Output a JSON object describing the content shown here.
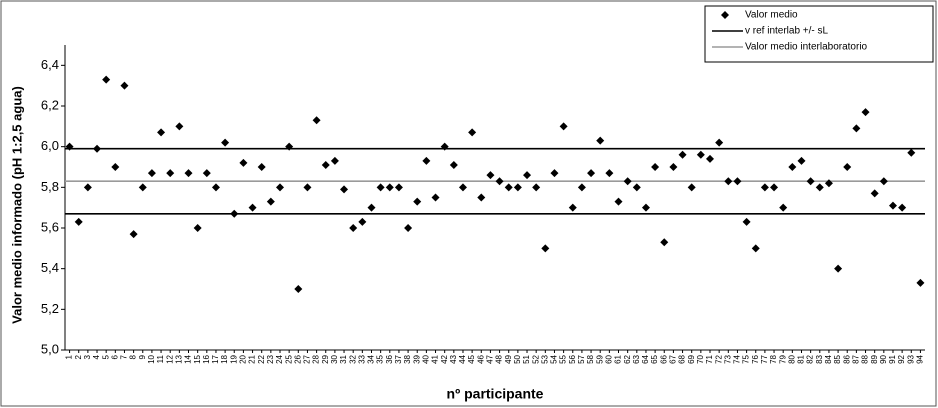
{
  "chart_data": {
    "type": "scatter",
    "ylabel": "Valor medio informado (pH 1:2,5 agua)",
    "xlabel": "nº participante",
    "x": [
      1,
      2,
      3,
      4,
      5,
      6,
      7,
      8,
      9,
      10,
      11,
      12,
      13,
      14,
      15,
      16,
      17,
      18,
      19,
      20,
      21,
      22,
      23,
      24,
      25,
      26,
      27,
      28,
      29,
      30,
      31,
      32,
      33,
      34,
      35,
      36,
      37,
      38,
      39,
      40,
      41,
      42,
      43,
      44,
      45,
      46,
      47,
      48,
      49,
      50,
      51,
      52,
      53,
      54,
      55,
      56,
      57,
      58,
      59,
      60,
      61,
      62,
      63,
      64,
      65,
      66,
      67,
      68,
      69,
      70,
      71,
      72,
      73,
      74,
      75,
      76,
      77,
      78,
      79,
      80,
      81,
      82,
      83,
      84,
      85,
      86,
      87,
      88,
      89,
      90,
      91,
      92,
      93,
      94
    ],
    "series": [
      {
        "name": "Valor medio",
        "color": "#000000",
        "values": [
          6.0,
          5.63,
          5.8,
          5.99,
          6.33,
          5.9,
          6.3,
          5.57,
          5.8,
          5.87,
          6.07,
          5.87,
          6.1,
          5.87,
          5.6,
          5.87,
          5.8,
          6.02,
          5.67,
          5.92,
          5.7,
          5.9,
          5.73,
          5.8,
          6.0,
          5.3,
          5.8,
          6.13,
          5.91,
          5.93,
          5.79,
          5.6,
          5.63,
          5.7,
          5.8,
          5.8,
          5.8,
          5.6,
          5.73,
          5.93,
          5.75,
          6.0,
          5.91,
          5.8,
          6.07,
          5.75,
          5.86,
          5.83,
          5.8,
          5.8,
          5.86,
          5.8,
          5.5,
          5.87,
          6.1,
          5.7,
          5.8,
          5.87,
          6.03,
          5.87,
          5.73,
          5.83,
          5.8,
          5.7,
          5.9,
          5.53,
          5.9,
          5.96,
          5.8,
          5.96,
          5.94,
          6.02,
          5.83,
          5.83,
          5.63,
          5.5,
          5.8,
          5.8,
          5.7,
          5.9,
          5.93,
          5.83,
          5.8,
          5.82,
          5.4,
          5.9,
          6.09,
          6.17,
          5.77,
          5.83,
          5.71,
          5.7,
          5.97,
          5.33
        ]
      }
    ],
    "reference_lines": [
      {
        "name": "v ref interlab +/- sL",
        "color": "#000000",
        "values": [
          5.67,
          5.99
        ]
      },
      {
        "name": "Valor medio interlaboratorio",
        "color": "#9a9a9a",
        "values": [
          5.83
        ]
      }
    ],
    "xlim": [
      0.5,
      94.5
    ],
    "ylim": [
      5.0,
      6.5
    ],
    "yticks": [
      {
        "value": 5.0,
        "label": "5,0"
      },
      {
        "value": 5.2,
        "label": "5,2"
      },
      {
        "value": 5.4,
        "label": "5,4"
      },
      {
        "value": 5.6,
        "label": "5,6"
      },
      {
        "value": 5.8,
        "label": "5,8"
      },
      {
        "value": 6.0,
        "label": "6,0"
      },
      {
        "value": 6.2,
        "label": "6,2"
      },
      {
        "value": 6.4,
        "label": "6,4"
      }
    ]
  }
}
